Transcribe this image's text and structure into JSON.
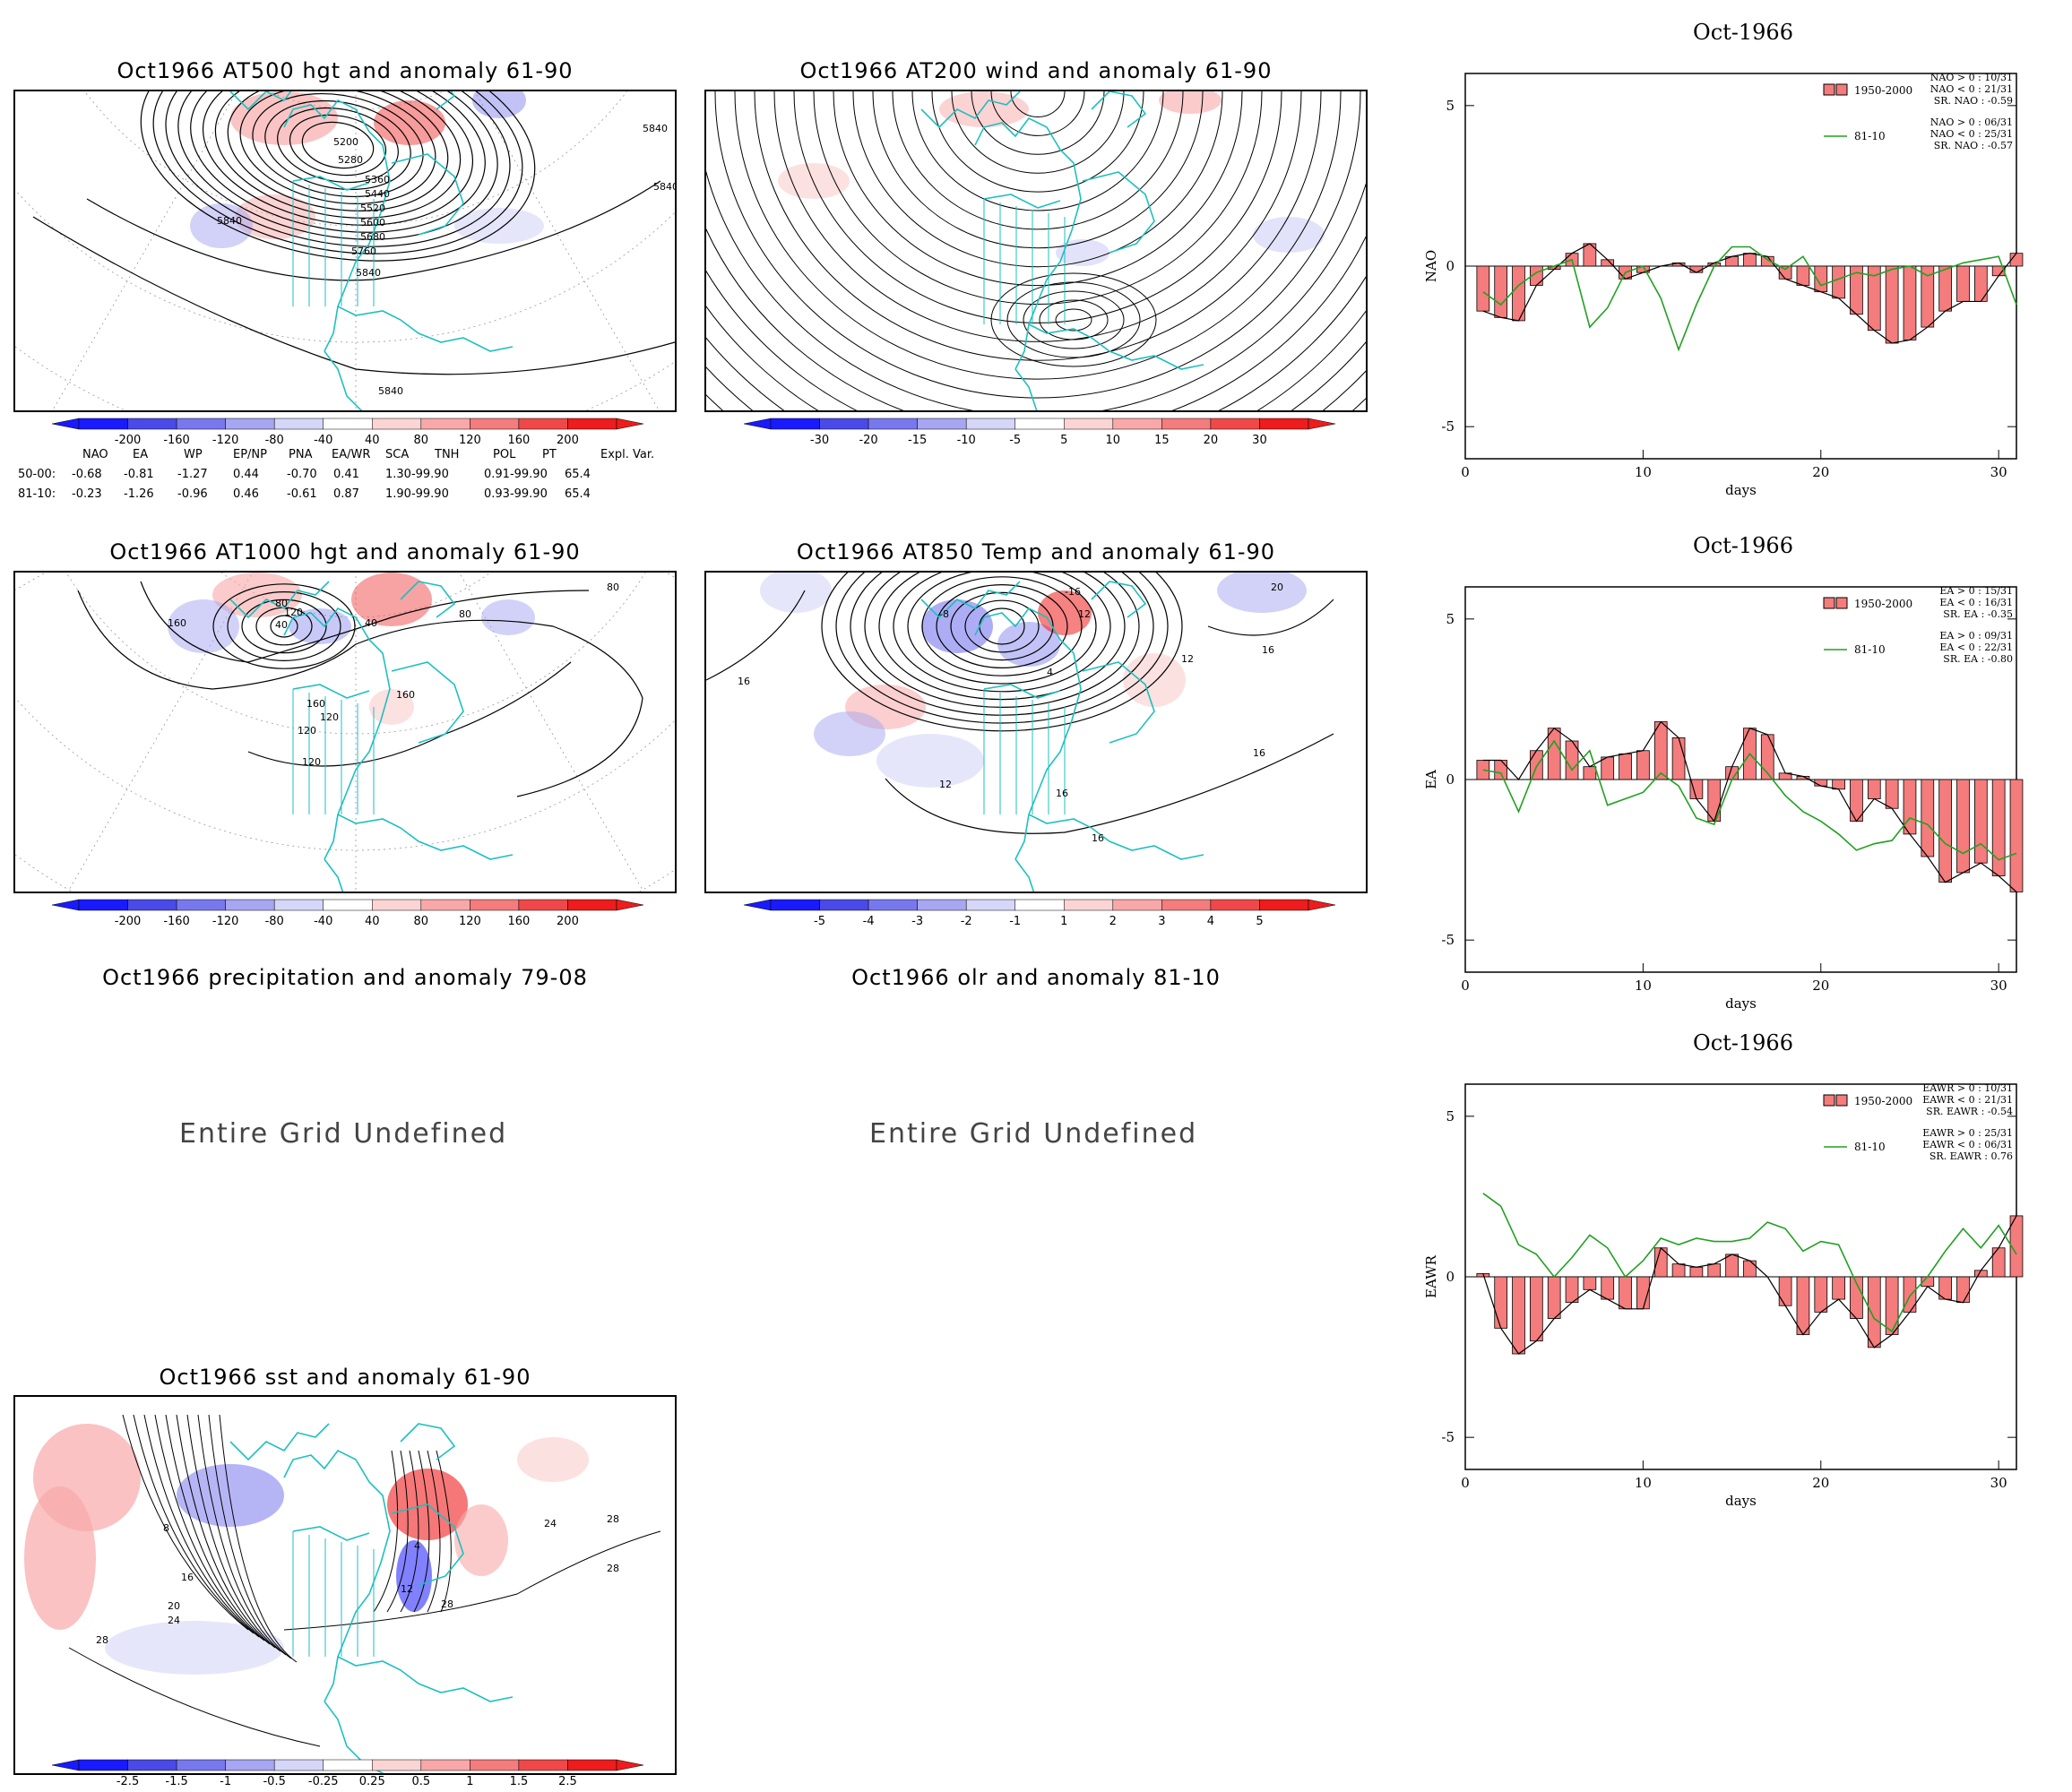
{
  "panels": {
    "at500": {
      "title": "Oct1966 AT500 hgt and anomaly 61-90",
      "contour_labels": [
        "5200",
        "5280",
        "5360",
        "5440",
        "5520",
        "5600",
        "5680",
        "5760",
        "5840",
        "5840",
        "5840",
        "5840",
        "5840"
      ],
      "colorbar": [
        "-200",
        "-160",
        "-120",
        "-80",
        "-40",
        "40",
        "80",
        "120",
        "160",
        "200"
      ]
    },
    "at200": {
      "title": "Oct1966 AT200 wind and anomaly 61-90",
      "colorbar": [
        "-30",
        "-20",
        "-15",
        "-10",
        "-5",
        "5",
        "10",
        "15",
        "20",
        "30"
      ]
    },
    "at1000": {
      "title": "Oct1966 AT1000 hgt and anomaly 61-90",
      "contour_labels": [
        "120",
        "80",
        "40",
        "160",
        "160",
        "120",
        "120",
        "160",
        "120",
        "80",
        "40",
        "80"
      ],
      "colorbar": [
        "-200",
        "-160",
        "-120",
        "-80",
        "-40",
        "40",
        "80",
        "120",
        "160",
        "200"
      ]
    },
    "at850": {
      "title": "Oct1966 AT850 Temp and anomaly 61-90",
      "contour_labels": [
        "-16",
        "-8",
        "4",
        "12",
        "16",
        "16",
        "12",
        "16",
        "20",
        "16",
        "12",
        "16"
      ],
      "colorbar": [
        "-5",
        "-4",
        "-3",
        "-2",
        "-1",
        "1",
        "2",
        "3",
        "4",
        "5"
      ]
    },
    "precip": {
      "title": "Oct1966 precipitation and anomaly 79-08",
      "message": "Entire Grid Undefined"
    },
    "olr": {
      "title": "Oct1966 olr and anomaly 81-10",
      "message": "Entire Grid Undefined"
    },
    "sst": {
      "title": "Oct1966 sst and anomaly 61-90",
      "contour_labels": [
        "28",
        "24",
        "20",
        "16",
        "8",
        "24",
        "28",
        "28",
        "28",
        "12",
        "4"
      ],
      "colorbar": [
        "-2.5",
        "-1.5",
        "-1",
        "-0.5",
        "-0.25",
        "0.25",
        "0.5",
        "1",
        "1.5",
        "2.5"
      ]
    }
  },
  "index_table": {
    "header": [
      "NAO",
      "EA",
      "WP",
      "EP/NP",
      "PNA",
      "EA/WR",
      "SCA",
      "TNH",
      "POL",
      "PT",
      "Expl. Var."
    ],
    "rows": [
      {
        "label": "50-00:",
        "values": [
          "-0.68",
          "-0.81",
          "-1.27",
          "0.44",
          "-0.70",
          "0.41",
          "1.30-99.90",
          "0.91-99.90",
          "65.4"
        ]
      },
      {
        "label": "81-10:",
        "values": [
          "-0.23",
          "-1.26",
          "-0.96",
          "0.46",
          "-0.61",
          "0.87",
          "1.90-99.90",
          "0.93-99.90",
          "65.4"
        ]
      }
    ]
  },
  "chart_data": [
    {
      "type": "bar",
      "title": "Oct-1966",
      "xlabel": "days",
      "ylabel": "NAO",
      "xlim": [
        0,
        31
      ],
      "ylim": [
        -6,
        6
      ],
      "yticks": [
        "5",
        "0",
        "-5"
      ],
      "xticks": [
        "0",
        "10",
        "20",
        "30"
      ],
      "legend_texts": [
        "NAO > 0 : 10/31",
        "NAO < 0 : 21/31",
        "SR. NAO : -0.59",
        "NAO > 0 : 06/31",
        "NAO < 0 : 25/31",
        "SR. NAO : -0.57"
      ],
      "series": [
        {
          "name": "1950-2000",
          "kind": "bar",
          "color": "#f47c7c",
          "values": [
            -1.4,
            -1.6,
            -1.7,
            -0.6,
            -0.1,
            0.4,
            0.7,
            0.2,
            -0.4,
            -0.2,
            0.0,
            0.1,
            -0.2,
            0.1,
            0.3,
            0.4,
            0.3,
            -0.4,
            -0.6,
            -0.8,
            -1.0,
            -1.5,
            -2.0,
            -2.4,
            -2.3,
            -1.9,
            -1.4,
            -1.1,
            -1.1,
            -0.3,
            0.4
          ]
        },
        {
          "name": "81-10",
          "kind": "line",
          "color": "#22a022",
          "values": [
            -0.8,
            -1.2,
            -0.6,
            -0.2,
            0.0,
            0.2,
            -1.9,
            -1.3,
            -0.2,
            0.0,
            -1.0,
            -2.6,
            -1.2,
            0.0,
            0.6,
            0.6,
            0.2,
            -0.1,
            0.3,
            -0.6,
            -0.4,
            -0.2,
            -0.3,
            -0.1,
            0.0,
            -0.3,
            -0.1,
            0.1,
            0.2,
            0.3,
            -1.2
          ]
        }
      ]
    },
    {
      "type": "bar",
      "title": "Oct-1966",
      "xlabel": "days",
      "ylabel": "EA",
      "xlim": [
        0,
        31
      ],
      "ylim": [
        -6,
        6
      ],
      "yticks": [
        "5",
        "0",
        "-5"
      ],
      "xticks": [
        "0",
        "10",
        "20",
        "30"
      ],
      "legend_texts": [
        "EA > 0 : 15/31",
        "EA < 0 : 16/31",
        "SR. EA : -0.35",
        "EA > 0 : 09/31",
        "EA < 0 : 22/31",
        "SR. EA : -0.80"
      ],
      "series": [
        {
          "name": "1950-2000",
          "kind": "bar",
          "color": "#f47c7c",
          "values": [
            0.6,
            0.6,
            0.0,
            0.9,
            1.6,
            1.2,
            0.4,
            0.7,
            0.8,
            0.9,
            1.8,
            1.3,
            -0.6,
            -1.3,
            0.4,
            1.6,
            1.4,
            0.2,
            0.1,
            -0.2,
            -0.3,
            -1.3,
            -0.6,
            -0.9,
            -1.7,
            -2.4,
            -3.2,
            -2.9,
            -2.6,
            -3.0,
            -3.5
          ]
        },
        {
          "name": "81-10",
          "kind": "line",
          "color": "#22a022",
          "values": [
            0.3,
            0.2,
            -1.0,
            0.4,
            1.2,
            0.3,
            0.9,
            -0.8,
            -0.6,
            -0.4,
            0.2,
            -0.2,
            -1.2,
            -1.4,
            0.0,
            0.8,
            0.2,
            -0.5,
            -1.0,
            -1.3,
            -1.7,
            -2.2,
            -2.0,
            -1.9,
            -1.2,
            -1.4,
            -2.0,
            -2.3,
            -2.0,
            -2.5,
            -2.3
          ]
        }
      ]
    },
    {
      "type": "bar",
      "title": "Oct-1966",
      "xlabel": "days",
      "ylabel": "EAWR",
      "xlim": [
        0,
        31
      ],
      "ylim": [
        -6,
        6
      ],
      "yticks": [
        "5",
        "0",
        "-5"
      ],
      "xticks": [
        "0",
        "10",
        "20",
        "30"
      ],
      "legend_texts": [
        "EAWR > 0 : 10/31",
        "EAWR < 0 : 21/31",
        "SR. EAWR : -0.54",
        "EAWR > 0 : 25/31",
        "EAWR < 0 : 06/31",
        "SR. EAWR : 0.76"
      ],
      "series": [
        {
          "name": "1950-2000",
          "kind": "bar",
          "color": "#f47c7c",
          "values": [
            0.1,
            -1.6,
            -2.4,
            -2.0,
            -1.3,
            -0.8,
            -0.4,
            -0.7,
            -1.0,
            -1.0,
            0.9,
            0.4,
            0.3,
            0.4,
            0.7,
            0.5,
            0.0,
            -0.9,
            -1.8,
            -1.1,
            -0.7,
            -1.3,
            -2.2,
            -1.8,
            -1.1,
            -0.3,
            -0.7,
            -0.8,
            0.2,
            0.9,
            1.9
          ]
        },
        {
          "name": "81-10",
          "kind": "line",
          "color": "#22a022",
          "values": [
            2.6,
            2.2,
            1.0,
            0.7,
            0.0,
            0.6,
            1.3,
            0.9,
            0.0,
            0.5,
            1.2,
            1.0,
            1.2,
            1.1,
            1.1,
            1.2,
            1.7,
            1.5,
            0.8,
            1.1,
            1.0,
            -0.2,
            -1.3,
            -1.7,
            -0.6,
            0.0,
            0.8,
            1.5,
            0.9,
            1.6,
            0.7
          ]
        }
      ]
    }
  ]
}
